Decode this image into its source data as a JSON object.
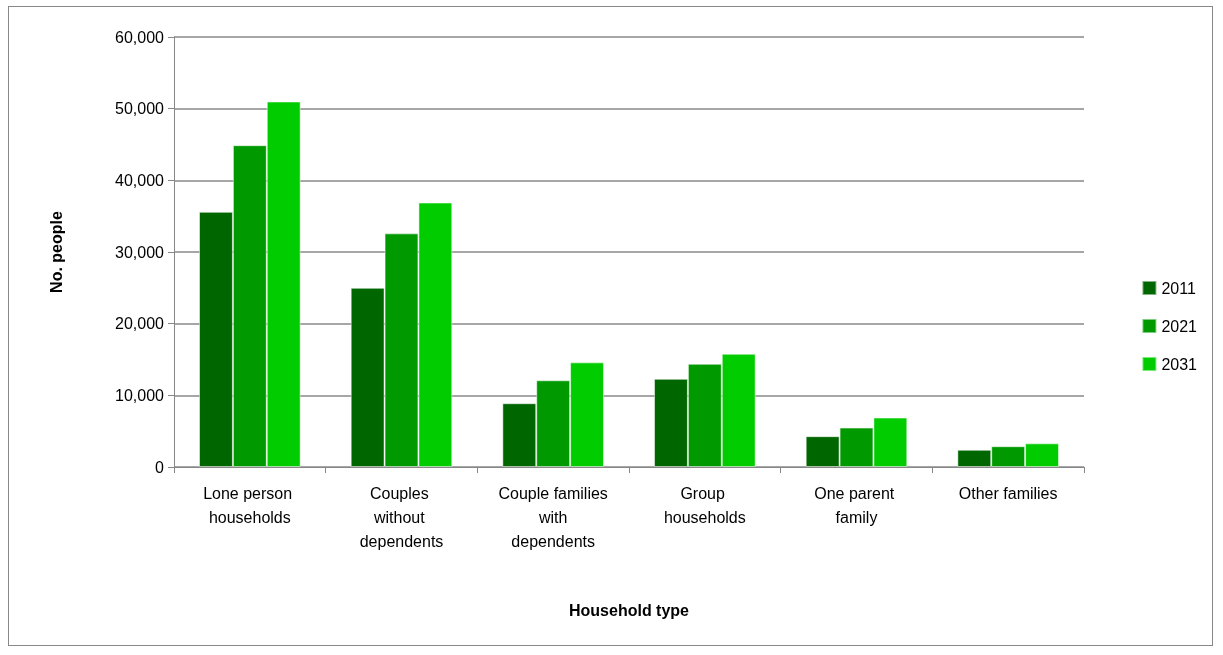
{
  "chart_data": {
    "type": "bar",
    "xlabel": "Household type",
    "ylabel": "No. people",
    "categories": [
      "Lone person households",
      "Couples without dependents",
      "Couple families with dependents",
      "Group households",
      "One parent family",
      "Other families"
    ],
    "series": [
      {
        "name": "2011",
        "color": "#006600",
        "values": [
          35600,
          25000,
          8900,
          12300,
          4300,
          2400
        ]
      },
      {
        "name": "2021",
        "color": "#009900",
        "values": [
          44900,
          32600,
          12100,
          14400,
          5500,
          2900
        ]
      },
      {
        "name": "2031",
        "color": "#00cc00",
        "values": [
          51000,
          36900,
          14600,
          15800,
          6900,
          3300
        ]
      }
    ],
    "ylim": [
      0,
      60000
    ],
    "yticks": [
      0,
      {
        "value": 10000,
        "label": "10,000"
      },
      {
        "value": 20000,
        "label": "20,000"
      },
      {
        "value": 30000,
        "label": "30,000"
      },
      {
        "value": 40000,
        "label": "40,000"
      },
      {
        "value": 50000,
        "label": "50,000"
      },
      {
        "value": 60000,
        "label": "60,000"
      }
    ],
    "grid": "y",
    "legend": "right"
  }
}
